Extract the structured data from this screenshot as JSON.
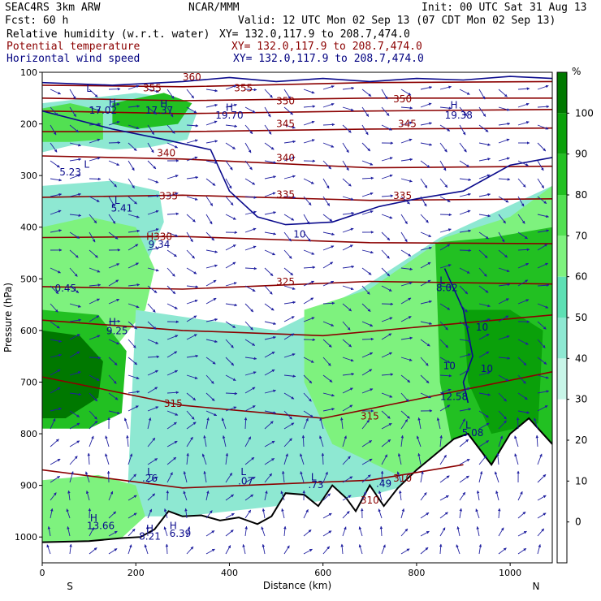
{
  "header": {
    "model": "SEAC4RS  3km ARW",
    "org": "NCAR/MMM",
    "init": "Init: 00 UTC Sat 31 Aug 13",
    "fcst": "Fcst:   60 h",
    "valid": "Valid: 12 UTC Mon 02 Sep 13 (07 CDT Mon 02 Sep 13)",
    "fields": [
      {
        "name": "Relative humidity (w.r.t. water)",
        "xy": "XY= 132.0,117.9 to 208.7,474.0",
        "color": "#000000"
      },
      {
        "name": "Potential temperature",
        "xy": "XY= 132.0,117.9 to 208.7,474.0",
        "color": "#8b0000"
      },
      {
        "name": "Horizontal wind speed",
        "xy": "XY= 132.0,117.9 to 208.7,474.0",
        "color": "#000080"
      }
    ]
  },
  "chart_data": {
    "type": "heatmap",
    "title": "",
    "xlabel": "Distance (km)",
    "ylabel": "Pressure (hPa)",
    "xlim": [
      0,
      1090
    ],
    "ylim": [
      1050,
      100
    ],
    "x_ticks": [
      0,
      200,
      400,
      600,
      800,
      1000
    ],
    "y_ticks": [
      100,
      200,
      300,
      400,
      500,
      600,
      700,
      800,
      900,
      1000
    ],
    "x_end_labels": {
      "left": "S",
      "right": "N"
    },
    "colorbar": {
      "unit": "%",
      "ticks": [
        0,
        10,
        20,
        30,
        40,
        50,
        60,
        70,
        80,
        90,
        100
      ],
      "colors": [
        "#ffffff",
        "#ffffff",
        "#ffffff",
        "#c8f5e8",
        "#8ee8d2",
        "#5ee0b4",
        "#7ef27e",
        "#52e052",
        "#22c022",
        "#0aa00a",
        "#007800"
      ]
    },
    "rh_regions": [
      {
        "rh": 40,
        "pts": [
          [
            0,
            160
          ],
          [
            100,
            150
          ],
          [
            200,
            140
          ],
          [
            280,
            150
          ],
          [
            330,
            180
          ],
          [
            310,
            230
          ],
          [
            230,
            245
          ],
          [
            150,
            250
          ],
          [
            70,
            240
          ],
          [
            0,
            255
          ]
        ]
      },
      {
        "rh": 75,
        "pts": [
          [
            0,
            170
          ],
          [
            60,
            160
          ],
          [
            130,
            175
          ],
          [
            130,
            230
          ],
          [
            60,
            235
          ],
          [
            0,
            235
          ]
        ]
      },
      {
        "rh": 80,
        "pts": [
          [
            150,
            160
          ],
          [
            260,
            140
          ],
          [
            320,
            160
          ],
          [
            290,
            200
          ],
          [
            200,
            210
          ],
          [
            150,
            200
          ]
        ]
      },
      {
        "rh": 40,
        "pts": [
          [
            0,
            320
          ],
          [
            150,
            310
          ],
          [
            250,
            330
          ],
          [
            260,
            390
          ],
          [
            200,
            520
          ],
          [
            150,
            610
          ],
          [
            0,
            620
          ]
        ]
      },
      {
        "rh": 60,
        "pts": [
          [
            0,
            400
          ],
          [
            100,
            380
          ],
          [
            200,
            400
          ],
          [
            240,
            480
          ],
          [
            220,
            560
          ],
          [
            150,
            640
          ],
          [
            60,
            650
          ],
          [
            0,
            650
          ]
        ]
      },
      {
        "rh": 80,
        "pts": [
          [
            0,
            560
          ],
          [
            120,
            570
          ],
          [
            180,
            640
          ],
          [
            170,
            760
          ],
          [
            100,
            790
          ],
          [
            0,
            790
          ]
        ]
      },
      {
        "rh": 100,
        "pts": [
          [
            0,
            600
          ],
          [
            80,
            610
          ],
          [
            130,
            660
          ],
          [
            120,
            730
          ],
          [
            50,
            770
          ],
          [
            0,
            770
          ]
        ]
      },
      {
        "rh": 40,
        "pts": [
          [
            200,
            560
          ],
          [
            350,
            580
          ],
          [
            500,
            600
          ],
          [
            680,
            520
          ],
          [
            850,
            420
          ],
          [
            1090,
            320
          ],
          [
            1090,
            760
          ],
          [
            900,
            870
          ],
          [
            700,
            920
          ],
          [
            500,
            940
          ],
          [
            300,
            960
          ],
          [
            180,
            960
          ]
        ]
      },
      {
        "rh": 60,
        "pts": [
          [
            560,
            560
          ],
          [
            700,
            520
          ],
          [
            860,
            420
          ],
          [
            1000,
            380
          ],
          [
            1090,
            320
          ],
          [
            1090,
            830
          ],
          [
            900,
            850
          ],
          [
            760,
            880
          ],
          [
            620,
            820
          ],
          [
            560,
            700
          ]
        ]
      },
      {
        "rh": 80,
        "pts": [
          [
            840,
            430
          ],
          [
            960,
            420
          ],
          [
            1090,
            400
          ],
          [
            1090,
            850
          ],
          [
            960,
            870
          ],
          [
            880,
            840
          ],
          [
            850,
            700
          ]
        ]
      },
      {
        "rh": 90,
        "pts": [
          [
            900,
            560
          ],
          [
            1000,
            560
          ],
          [
            1070,
            600
          ],
          [
            1060,
            780
          ],
          [
            960,
            800
          ],
          [
            910,
            700
          ]
        ]
      },
      {
        "rh": 60,
        "pts": [
          [
            0,
            890
          ],
          [
            120,
            880
          ],
          [
            200,
            900
          ],
          [
            220,
            960
          ],
          [
            160,
            1010
          ],
          [
            0,
            1010
          ]
        ]
      }
    ],
    "terrain_mb": [
      [
        0,
        1010
      ],
      [
        100,
        1008
      ],
      [
        170,
        1002
      ],
      [
        210,
        1000
      ],
      [
        240,
        985
      ],
      [
        270,
        950
      ],
      [
        300,
        960
      ],
      [
        340,
        958
      ],
      [
        380,
        968
      ],
      [
        420,
        962
      ],
      [
        460,
        975
      ],
      [
        490,
        960
      ],
      [
        520,
        915
      ],
      [
        560,
        918
      ],
      [
        590,
        940
      ],
      [
        620,
        900
      ],
      [
        650,
        925
      ],
      [
        670,
        950
      ],
      [
        700,
        900
      ],
      [
        730,
        940
      ],
      [
        760,
        905
      ],
      [
        800,
        870
      ],
      [
        840,
        840
      ],
      [
        880,
        810
      ],
      [
        910,
        800
      ],
      [
        960,
        860
      ],
      [
        1000,
        800
      ],
      [
        1040,
        770
      ],
      [
        1060,
        790
      ],
      [
        1090,
        820
      ]
    ],
    "theta_isentropes_K": [
      {
        "value": 360,
        "pts": [
          [
            0,
            125
          ],
          [
            300,
            128
          ],
          [
            700,
            120
          ],
          [
            1090,
            118
          ]
        ]
      },
      {
        "value": 355,
        "pts": [
          [
            0,
            150
          ],
          [
            300,
            155
          ],
          [
            700,
            150
          ],
          [
            1090,
            150
          ]
        ]
      },
      {
        "value": 350,
        "pts": [
          [
            0,
            175
          ],
          [
            300,
            180
          ],
          [
            700,
            175
          ],
          [
            1090,
            172
          ]
        ]
      },
      {
        "value": 345,
        "pts": [
          [
            0,
            215
          ],
          [
            300,
            215
          ],
          [
            700,
            210
          ],
          [
            1090,
            208
          ]
        ]
      },
      {
        "value": 340,
        "pts": [
          [
            0,
            262
          ],
          [
            300,
            268
          ],
          [
            700,
            285
          ],
          [
            1090,
            282
          ]
        ]
      },
      {
        "value": 335,
        "pts": [
          [
            0,
            342
          ],
          [
            300,
            338
          ],
          [
            700,
            348
          ],
          [
            1090,
            345
          ]
        ]
      },
      {
        "value": 330,
        "pts": [
          [
            0,
            420
          ],
          [
            300,
            418
          ],
          [
            700,
            430
          ],
          [
            1090,
            432
          ]
        ]
      },
      {
        "value": 325,
        "pts": [
          [
            0,
            515
          ],
          [
            300,
            520
          ],
          [
            700,
            505
          ],
          [
            1090,
            510
          ]
        ]
      },
      {
        "value": 320,
        "pts": [
          [
            0,
            580
          ],
          [
            300,
            600
          ],
          [
            600,
            610
          ],
          [
            1090,
            570
          ]
        ]
      },
      {
        "value": 315,
        "pts": [
          [
            0,
            690
          ],
          [
            300,
            745
          ],
          [
            600,
            770
          ],
          [
            1090,
            680
          ]
        ]
      },
      {
        "value": 310,
        "pts": [
          [
            0,
            870
          ],
          [
            300,
            905
          ],
          [
            700,
            890
          ],
          [
            900,
            860
          ]
        ]
      }
    ],
    "theta_labels": [
      {
        "text": "360",
        "x": 320,
        "p": 116
      },
      {
        "text": "355",
        "x": 235,
        "p": 137
      },
      {
        "text": "355",
        "x": 430,
        "p": 137
      },
      {
        "text": "350",
        "x": 520,
        "p": 162
      },
      {
        "text": "350",
        "x": 770,
        "p": 158
      },
      {
        "text": "345",
        "x": 520,
        "p": 206
      },
      {
        "text": "345",
        "x": 780,
        "p": 206
      },
      {
        "text": "340",
        "x": 265,
        "p": 263
      },
      {
        "text": "340",
        "x": 520,
        "p": 272
      },
      {
        "text": "335",
        "x": 270,
        "p": 346
      },
      {
        "text": "335",
        "x": 520,
        "p": 343
      },
      {
        "text": "335",
        "x": 770,
        "p": 345
      },
      {
        "text": "H330",
        "x": 250,
        "p": 425
      },
      {
        "text": "325",
        "x": 520,
        "p": 512
      },
      {
        "text": "315",
        "x": 280,
        "p": 748
      },
      {
        "text": "315",
        "x": 700,
        "p": 772
      },
      {
        "text": "310",
        "x": 770,
        "p": 893
      },
      {
        "text": "310",
        "x": 700,
        "p": 935
      }
    ],
    "wind_speed_labels": [
      {
        "text": "L",
        "x": 100,
        "p": 138
      },
      {
        "text": "H",
        "x": 150,
        "p": 165
      },
      {
        "text": "17.02",
        "x": 130,
        "p": 180
      },
      {
        "text": "17.37",
        "x": 250,
        "p": 180
      },
      {
        "text": "H",
        "x": 260,
        "p": 168
      },
      {
        "text": "19.70",
        "x": 400,
        "p": 190
      },
      {
        "text": "H",
        "x": 400,
        "p": 175
      },
      {
        "text": "19.38",
        "x": 890,
        "p": 190
      },
      {
        "text": "H",
        "x": 880,
        "p": 170
      },
      {
        "text": "L",
        "x": 95,
        "p": 285
      },
      {
        "text": "5.23",
        "x": 60,
        "p": 300
      },
      {
        "text": "L",
        "x": 160,
        "p": 355
      },
      {
        "text": "5.41",
        "x": 170,
        "p": 370
      },
      {
        "text": "9.34",
        "x": 250,
        "p": 440
      },
      {
        "text": "0.45",
        "x": 50,
        "p": 525
      },
      {
        "text": "H",
        "x": 150,
        "p": 590
      },
      {
        "text": "9.25",
        "x": 160,
        "p": 607
      },
      {
        "text": "L",
        "x": 855,
        "p": 510
      },
      {
        "text": "8.02",
        "x": 865,
        "p": 524
      },
      {
        "text": "10",
        "x": 550,
        "p": 420
      },
      {
        "text": "10",
        "x": 940,
        "p": 600
      },
      {
        "text": "10",
        "x": 870,
        "p": 675
      },
      {
        "text": "10",
        "x": 950,
        "p": 680
      },
      {
        "text": "12.58",
        "x": 880,
        "p": 735
      },
      {
        "text": "L",
        "x": 910,
        "p": 790
      },
      {
        "text": "5.08",
        "x": 920,
        "p": 805
      },
      {
        "text": "L",
        "x": 230,
        "p": 880
      },
      {
        "text": ".26",
        "x": 230,
        "p": 893
      },
      {
        "text": "L",
        "x": 430,
        "p": 880
      },
      {
        "text": ".07",
        "x": 435,
        "p": 898
      },
      {
        "text": "L",
        "x": 580,
        "p": 890
      },
      {
        "text": ".73",
        "x": 585,
        "p": 905
      },
      {
        "text": ".49",
        "x": 730,
        "p": 903
      },
      {
        "text": "H",
        "x": 110,
        "p": 970
      },
      {
        "text": "13.66",
        "x": 125,
        "p": 985
      },
      {
        "text": "H",
        "x": 280,
        "p": 985
      },
      {
        "text": "6.39",
        "x": 295,
        "p": 1000
      },
      {
        "text": "H",
        "x": 230,
        "p": 990
      },
      {
        "text": "8.21",
        "x": 230,
        "p": 1005
      }
    ],
    "wind_contours": [
      {
        "pts": [
          [
            0,
            120
          ],
          [
            150,
            125
          ],
          [
            300,
            118
          ],
          [
            400,
            110
          ],
          [
            500,
            118
          ],
          [
            600,
            112
          ],
          [
            700,
            118
          ],
          [
            800,
            112
          ],
          [
            900,
            115
          ],
          [
            1000,
            108
          ],
          [
            1090,
            112
          ]
        ]
      },
      {
        "pts": [
          [
            0,
            175
          ],
          [
            150,
            210
          ],
          [
            260,
            230
          ],
          [
            360,
            250
          ],
          [
            400,
            330
          ],
          [
            460,
            380
          ],
          [
            520,
            395
          ],
          [
            620,
            390
          ],
          [
            720,
            360
          ],
          [
            800,
            345
          ],
          [
            900,
            330
          ],
          [
            1000,
            280
          ],
          [
            1090,
            265
          ]
        ]
      },
      {
        "pts": [
          [
            860,
            480
          ],
          [
            900,
            560
          ],
          [
            920,
            650
          ],
          [
            900,
            700
          ],
          [
            910,
            740
          ]
        ]
      }
    ]
  }
}
